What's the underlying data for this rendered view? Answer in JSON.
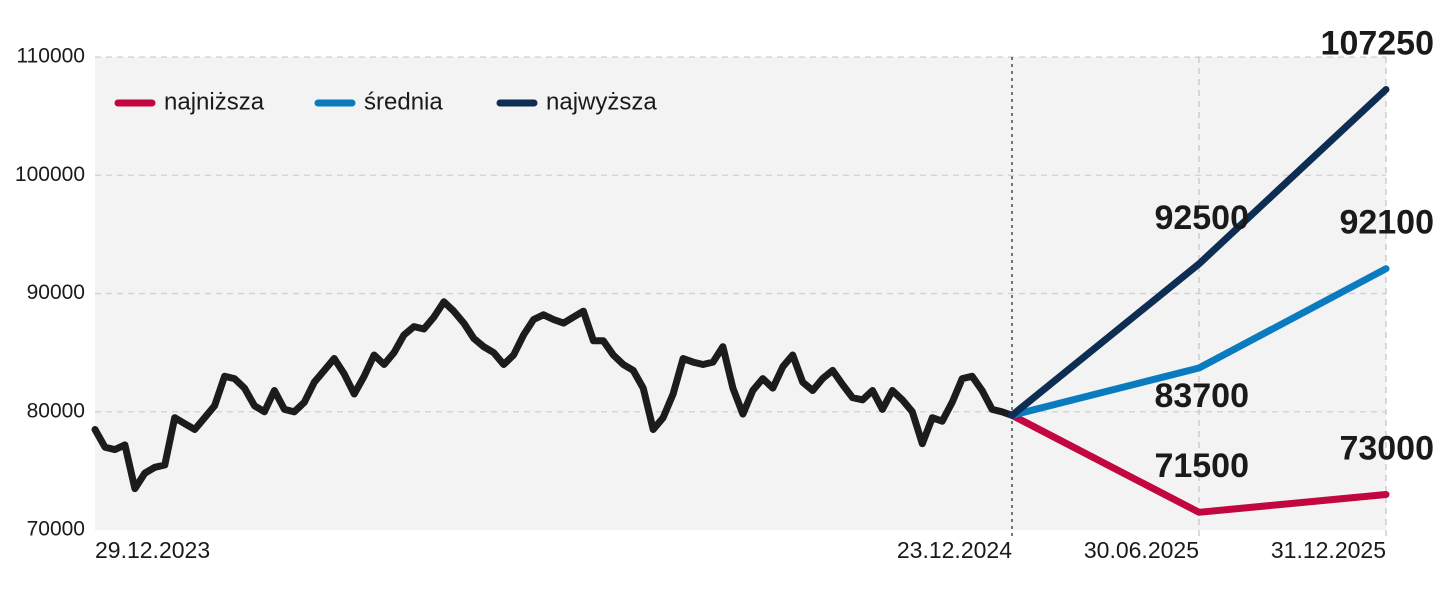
{
  "chart_data": {
    "type": "line",
    "ylim": [
      70000,
      110000
    ],
    "yticks": [
      70000,
      80000,
      90000,
      100000,
      110000
    ],
    "grid": true,
    "legend": "top-left",
    "categories": [
      "29.12.2023",
      null,
      null,
      null,
      null,
      null,
      null,
      null,
      null,
      null,
      null,
      null,
      null,
      null,
      null,
      null,
      null,
      null,
      null,
      null,
      null,
      null,
      null,
      null,
      null,
      null,
      null,
      null,
      null,
      null,
      null,
      null,
      null,
      null,
      null,
      null,
      null,
      null,
      null,
      null,
      null,
      null,
      null,
      null,
      null,
      null,
      null,
      null,
      null,
      null,
      null,
      null,
      null,
      null,
      null,
      null,
      null,
      null,
      null,
      null,
      null,
      null,
      null,
      null,
      null,
      null,
      null,
      null,
      null,
      null,
      null,
      null,
      null,
      null,
      null,
      null,
      null,
      null,
      null,
      null,
      null,
      null,
      null,
      null,
      null,
      null,
      null,
      null,
      null,
      null,
      null,
      null,
      "23.12.2024",
      "30.06.2025",
      "31.12.2025"
    ],
    "series": [
      {
        "color": "#1c1c1c",
        "values": [
          78500,
          77000,
          76800,
          77200,
          73500,
          74800,
          75300,
          75500,
          79500,
          79000,
          78500,
          79500,
          80500,
          83000,
          82800,
          82000,
          80500,
          80000,
          81800,
          80200,
          80000,
          80800,
          82500,
          83500,
          84500,
          83200,
          81500,
          83000,
          84800,
          84000,
          85000,
          86500,
          87200,
          87000,
          88000,
          89300,
          88500,
          87500,
          86200,
          85500,
          85000,
          84000,
          84800,
          86500,
          87800,
          88200,
          87800,
          87500,
          88000,
          88500,
          86000,
          86000,
          84800,
          84000,
          83500,
          82000,
          78500,
          79500,
          81500,
          84500,
          84200,
          84000,
          84200,
          85500,
          82000,
          79800,
          81800,
          82800,
          82000,
          83800,
          84800,
          82500,
          81800,
          82800,
          83500,
          82300,
          81200,
          81000,
          81800,
          80200,
          81800,
          81000,
          80000,
          77300,
          79500,
          79200,
          80800,
          82800,
          83000,
          81800,
          80200,
          80000,
          79700,
          null,
          null
        ]
      },
      {
        "name": "najniższa",
        "color": "#c2063f",
        "values": [
          null,
          null,
          null,
          null,
          null,
          null,
          null,
          null,
          null,
          null,
          null,
          null,
          null,
          null,
          null,
          null,
          null,
          null,
          null,
          null,
          null,
          null,
          null,
          null,
          null,
          null,
          null,
          null,
          null,
          null,
          null,
          null,
          null,
          null,
          null,
          null,
          null,
          null,
          null,
          null,
          null,
          null,
          null,
          null,
          null,
          null,
          null,
          null,
          null,
          null,
          null,
          null,
          null,
          null,
          null,
          null,
          null,
          null,
          null,
          null,
          null,
          null,
          null,
          null,
          null,
          null,
          null,
          null,
          null,
          null,
          null,
          null,
          null,
          null,
          null,
          null,
          null,
          null,
          null,
          null,
          null,
          null,
          null,
          null,
          null,
          null,
          null,
          null,
          null,
          null,
          null,
          null,
          79700,
          71500,
          73000
        ]
      },
      {
        "name": "średnia",
        "color": "#0a7bbf",
        "values": [
          null,
          null,
          null,
          null,
          null,
          null,
          null,
          null,
          null,
          null,
          null,
          null,
          null,
          null,
          null,
          null,
          null,
          null,
          null,
          null,
          null,
          null,
          null,
          null,
          null,
          null,
          null,
          null,
          null,
          null,
          null,
          null,
          null,
          null,
          null,
          null,
          null,
          null,
          null,
          null,
          null,
          null,
          null,
          null,
          null,
          null,
          null,
          null,
          null,
          null,
          null,
          null,
          null,
          null,
          null,
          null,
          null,
          null,
          null,
          null,
          null,
          null,
          null,
          null,
          null,
          null,
          null,
          null,
          null,
          null,
          null,
          null,
          null,
          null,
          null,
          null,
          null,
          null,
          null,
          null,
          null,
          null,
          null,
          null,
          null,
          null,
          null,
          null,
          null,
          null,
          null,
          null,
          79700,
          83700,
          92100
        ]
      },
      {
        "name": "najwyższa",
        "color": "#0d2d52",
        "values": [
          null,
          null,
          null,
          null,
          null,
          null,
          null,
          null,
          null,
          null,
          null,
          null,
          null,
          null,
          null,
          null,
          null,
          null,
          null,
          null,
          null,
          null,
          null,
          null,
          null,
          null,
          null,
          null,
          null,
          null,
          null,
          null,
          null,
          null,
          null,
          null,
          null,
          null,
          null,
          null,
          null,
          null,
          null,
          null,
          null,
          null,
          null,
          null,
          null,
          null,
          null,
          null,
          null,
          null,
          null,
          null,
          null,
          null,
          null,
          null,
          null,
          null,
          null,
          null,
          null,
          null,
          null,
          null,
          null,
          null,
          null,
          null,
          null,
          null,
          null,
          null,
          null,
          null,
          null,
          null,
          null,
          null,
          null,
          null,
          null,
          null,
          null,
          null,
          null,
          null,
          null,
          null,
          79700,
          92500,
          107250
        ]
      }
    ]
  }
}
